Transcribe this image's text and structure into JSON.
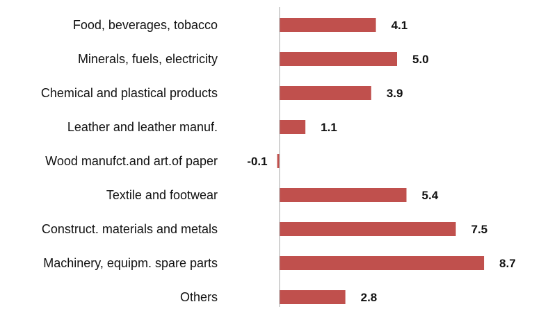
{
  "chart_data": {
    "type": "bar",
    "orientation": "horizontal",
    "title": "",
    "xlabel": "",
    "ylabel": "",
    "categories": [
      "Food, beverages, tobacco",
      "Minerals, fuels, electricity",
      "Chemical and plastical products",
      "Leather and leather manuf.",
      "Wood manufct.and art.of paper",
      "Textile and footwear",
      "Construct. materials and metals",
      "Machinery, equipm. spare parts",
      "Others"
    ],
    "values": [
      4.1,
      5.0,
      3.9,
      1.1,
      -0.1,
      5.4,
      7.5,
      8.7,
      2.8
    ],
    "value_labels": [
      "4.1",
      "5.0",
      "3.9",
      "1.1",
      "-0.1",
      "5.4",
      "7.5",
      "8.7",
      "2.8"
    ],
    "xlim": [
      -0.1,
      8.7
    ],
    "grid": false,
    "legend": "none",
    "bar_color": "#c0504d",
    "axis_color": "#a6a6a6"
  }
}
